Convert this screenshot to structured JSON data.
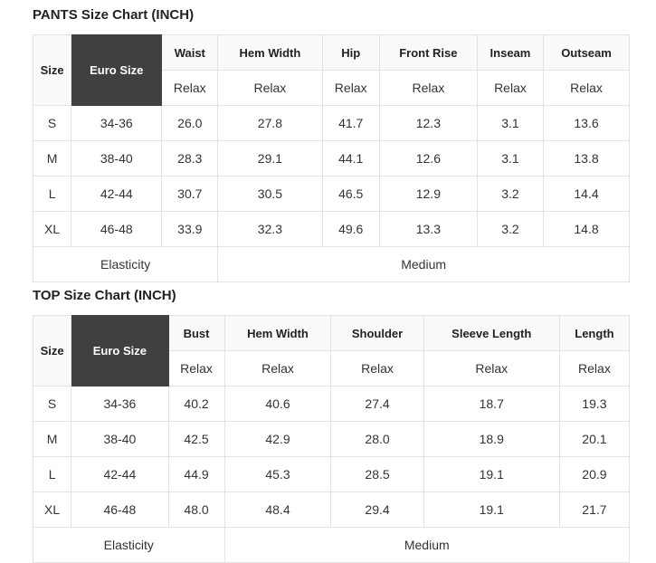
{
  "colors": {
    "page_bg": "#ffffff",
    "euro_size_bg": "#404040",
    "euro_size_text": "#ffffff",
    "header_bg": "#f9f9f9",
    "border": "#e3e3e3",
    "header_text": "#222222",
    "body_text": "#333333"
  },
  "chart_data": [
    {
      "type": "table",
      "title": "PANTS Size Chart (INCH)",
      "header": {
        "size": "Size",
        "euro_size": "Euro Size",
        "measurements": [
          "Waist",
          "Hem Width",
          "Hip",
          "Front Rise",
          "Inseam",
          "Outseam"
        ],
        "fit_row": [
          "Relax",
          "Relax",
          "Relax",
          "Relax",
          "Relax",
          "Relax"
        ]
      },
      "rows": [
        [
          "S",
          "34-36",
          "26.0",
          "27.8",
          "41.7",
          "12.3",
          "3.1",
          "13.6"
        ],
        [
          "M",
          "38-40",
          "28.3",
          "29.1",
          "44.1",
          "12.6",
          "3.1",
          "13.8"
        ],
        [
          "L",
          "42-44",
          "30.7",
          "30.5",
          "46.5",
          "12.9",
          "3.2",
          "14.4"
        ],
        [
          "XL",
          "46-48",
          "33.9",
          "32.3",
          "49.6",
          "13.3",
          "3.2",
          "14.8"
        ]
      ],
      "footer": [
        "Elasticity",
        "Medium"
      ]
    },
    {
      "type": "table",
      "title": "TOP Size Chart (INCH)",
      "header": {
        "size": "Size",
        "euro_size": "Euro Size",
        "measurements": [
          "Bust",
          "Hem Width",
          "Shoulder",
          "Sleeve Length",
          "Length"
        ],
        "fit_row": [
          "Relax",
          "Relax",
          "Relax",
          "Relax",
          "Relax"
        ]
      },
      "rows": [
        [
          "S",
          "34-36",
          "40.2",
          "40.6",
          "27.4",
          "18.7",
          "19.3"
        ],
        [
          "M",
          "38-40",
          "42.5",
          "42.9",
          "28.0",
          "18.9",
          "20.1"
        ],
        [
          "L",
          "42-44",
          "44.9",
          "45.3",
          "28.5",
          "19.1",
          "20.9"
        ],
        [
          "XL",
          "46-48",
          "48.0",
          "48.4",
          "29.4",
          "19.1",
          "21.7"
        ]
      ],
      "footer": [
        "Elasticity",
        "Medium"
      ]
    }
  ]
}
